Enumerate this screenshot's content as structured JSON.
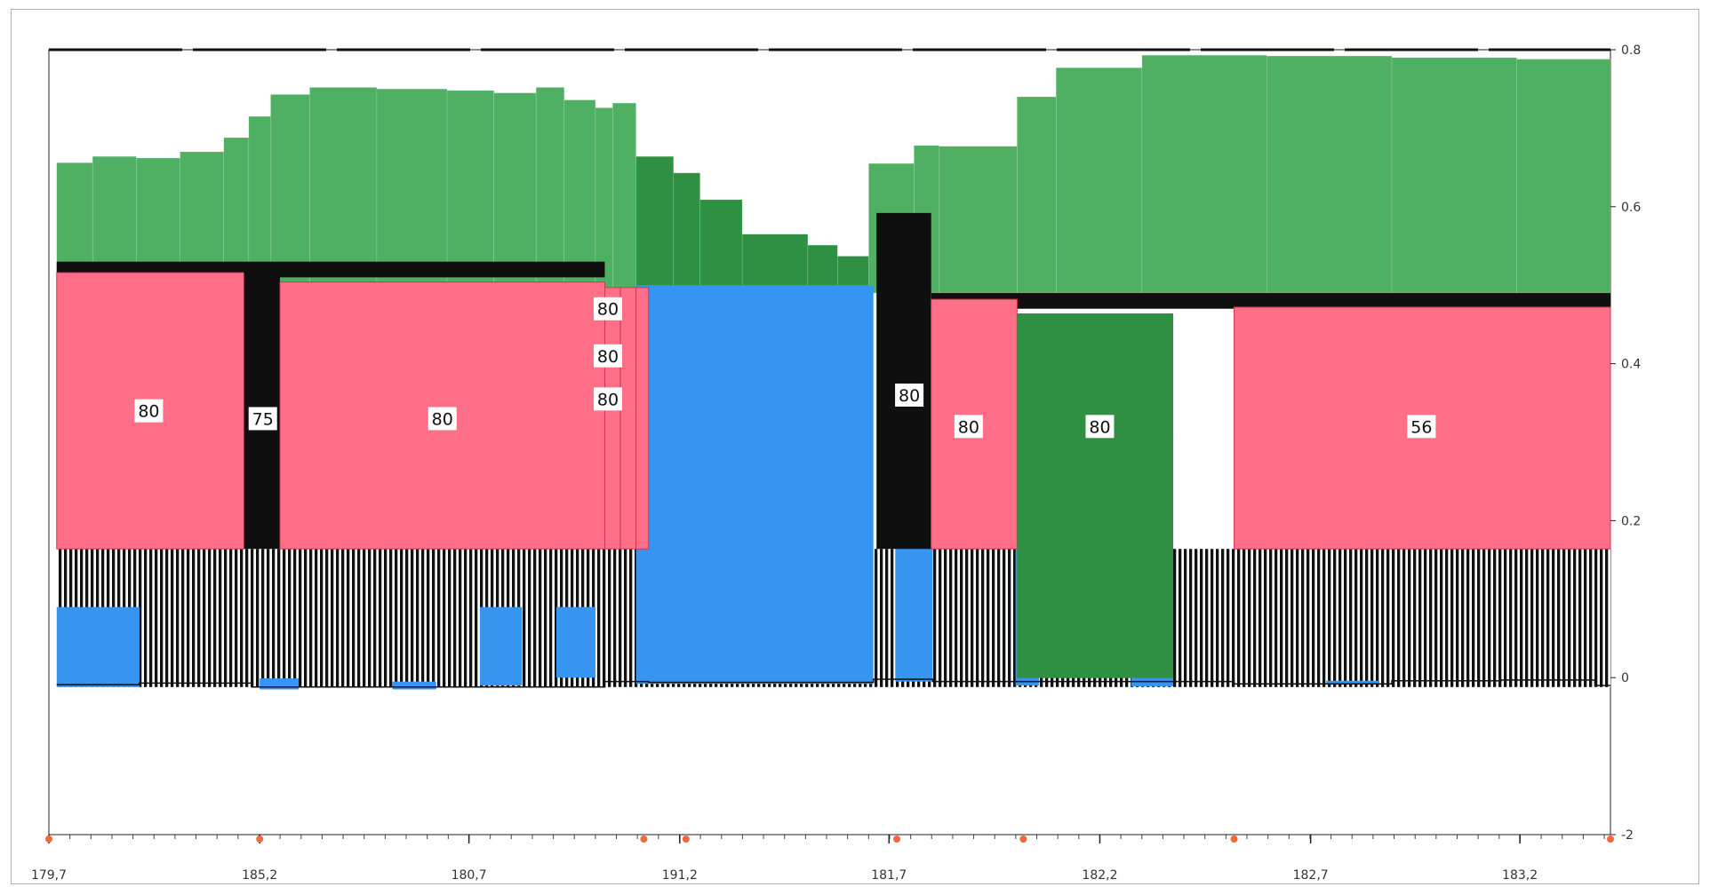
{
  "chart_data": {
    "type": "area",
    "xlim": [
      0,
      100
    ],
    "ylim": [
      -2,
      0.8
    ],
    "x_ticks": [
      {
        "x": 0,
        "label": "179,7"
      },
      {
        "x": 13.5,
        "label": "185,2"
      },
      {
        "x": 26.9,
        "label": "180,7"
      },
      {
        "x": 40.4,
        "label": "191,2"
      },
      {
        "x": 53.8,
        "label": "181,7"
      },
      {
        "x": 67.3,
        "label": "182,2"
      },
      {
        "x": 80.8,
        "label": "182,7"
      },
      {
        "x": 94.2,
        "label": "183,2"
      }
    ],
    "y_ticks": [
      {
        "y": 0.8,
        "label": "0.8"
      },
      {
        "y": 0.6,
        "label": "0.6"
      },
      {
        "y": 0.4,
        "label": "0.4"
      },
      {
        "y": 0.2,
        "label": "0.2"
      },
      {
        "y": 0,
        "label": "0"
      },
      {
        "y": -2,
        "label": "-2"
      }
    ],
    "y_axis_side": "right",
    "markers_x": [
      0,
      13.5,
      38.1,
      40.8,
      54.3,
      62.4,
      75.9,
      100
    ],
    "colors": {
      "light_green": "#4faf63",
      "dark_green": "#2f8f42",
      "pink": "#ff6f88",
      "blue": "#3595f0",
      "black": "#0f0f0f",
      "marker": "#f2693a"
    },
    "green_top": [
      {
        "x0": 0.5,
        "x1": 2.8,
        "y": 0.656
      },
      {
        "x0": 2.8,
        "x1": 5.6,
        "y": 0.664
      },
      {
        "x0": 5.6,
        "x1": 8.4,
        "y": 0.662
      },
      {
        "x0": 8.4,
        "x1": 11.2,
        "y": 0.67
      },
      {
        "x0": 11.2,
        "x1": 12.8,
        "y": 0.688
      },
      {
        "x0": 12.8,
        "x1": 14.2,
        "y": 0.715
      },
      {
        "x0": 14.2,
        "x1": 16.7,
        "y": 0.743
      },
      {
        "x0": 16.7,
        "x1": 21.0,
        "y": 0.752
      },
      {
        "x0": 21.0,
        "x1": 25.5,
        "y": 0.75
      },
      {
        "x0": 25.5,
        "x1": 28.5,
        "y": 0.748
      },
      {
        "x0": 28.5,
        "x1": 31.2,
        "y": 0.745
      },
      {
        "x0": 31.2,
        "x1": 33.0,
        "y": 0.752
      },
      {
        "x0": 33.0,
        "x1": 35.0,
        "y": 0.736
      },
      {
        "x0": 35.0,
        "x1": 36.1,
        "y": 0.726
      },
      {
        "x0": 36.1,
        "x1": 37.6,
        "y": 0.732
      },
      {
        "x0": 37.6,
        "x1": 40.0,
        "y": 0.664
      },
      {
        "x0": 40.0,
        "x1": 41.7,
        "y": 0.643
      },
      {
        "x0": 41.7,
        "x1": 44.4,
        "y": 0.609
      },
      {
        "x0": 44.4,
        "x1": 48.6,
        "y": 0.565
      },
      {
        "x0": 48.6,
        "x1": 50.5,
        "y": 0.551
      },
      {
        "x0": 50.5,
        "x1": 52.5,
        "y": 0.537
      },
      {
        "x0": 52.5,
        "x1": 55.4,
        "y": 0.655
      },
      {
        "x0": 55.4,
        "x1": 57.0,
        "y": 0.678
      },
      {
        "x0": 57.0,
        "x1": 62.0,
        "y": 0.677
      },
      {
        "x0": 62.0,
        "x1": 64.5,
        "y": 0.74
      },
      {
        "x0": 64.5,
        "x1": 70.0,
        "y": 0.777
      },
      {
        "x0": 70.0,
        "x1": 78.0,
        "y": 0.793
      },
      {
        "x0": 78.0,
        "x1": 86.0,
        "y": 0.792
      },
      {
        "x0": 86.0,
        "x1": 94.0,
        "y": 0.79
      },
      {
        "x0": 94.0,
        "x1": 100.0,
        "y": 0.788
      }
    ],
    "segments": [
      {
        "x0": 0.5,
        "x1": 12.5,
        "top": 0.516,
        "bottom": 0.164,
        "color": "pink",
        "label": "80"
      },
      {
        "x0": 12.5,
        "x1": 14.8,
        "top": 0.522,
        "bottom": 0.164,
        "color": "black",
        "label": "75"
      },
      {
        "x0": 14.8,
        "x1": 35.6,
        "top": 0.504,
        "bottom": 0.164,
        "color": "pink",
        "label": "80"
      },
      {
        "x0": 35.6,
        "x1": 36.6,
        "top": 0.497,
        "bottom": 0.164,
        "color": "pink",
        "label": "80"
      },
      {
        "x0": 36.6,
        "x1": 37.6,
        "top": 0.497,
        "bottom": 0.164,
        "color": "pink",
        "label": "80"
      },
      {
        "x0": 37.6,
        "x1": 38.4,
        "top": 0.497,
        "bottom": 0.164,
        "color": "pink",
        "label": "80"
      },
      {
        "x0": 53.0,
        "x1": 56.5,
        "top": 0.592,
        "bottom": 0.164,
        "color": "black",
        "label": "80"
      },
      {
        "x0": 56.5,
        "x1": 62.0,
        "top": 0.482,
        "bottom": 0.164,
        "color": "pink",
        "label": "80"
      },
      {
        "x0": 62.0,
        "x1": 72.0,
        "top": 0.464,
        "bottom": -0.005,
        "color": "dark_green",
        "label": "80"
      },
      {
        "x0": 75.9,
        "x1": 100.0,
        "top": 0.472,
        "bottom": 0.164,
        "color": "pink",
        "label": "56"
      }
    ]
  }
}
